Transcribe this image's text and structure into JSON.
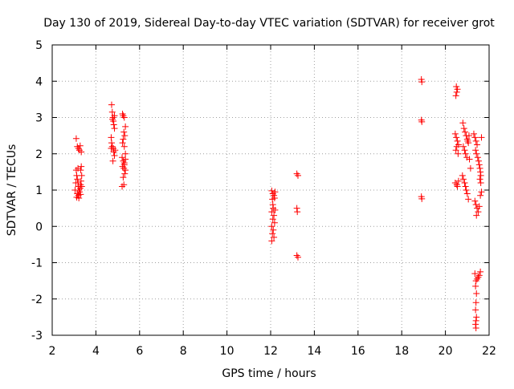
{
  "chart_data": {
    "type": "scatter",
    "title": "Day 130 of 2019, Sidereal Day-to-day VTEC variation (SDTVAR) for receiver grot",
    "xlabel": "GPS time / hours",
    "ylabel": "SDTVAR / TECUs",
    "xlim": [
      2,
      22
    ],
    "ylim": [
      -3,
      5
    ],
    "xticks": [
      2,
      4,
      6,
      8,
      10,
      12,
      14,
      16,
      18,
      20,
      22
    ],
    "yticks": [
      -3,
      -2,
      -1,
      0,
      1,
      2,
      3,
      4,
      5
    ],
    "grid": true,
    "marker": "plus",
    "color": "#ff0000",
    "series": [
      {
        "name": "SDTVAR",
        "points": [
          [
            3.1,
            2.42
          ],
          [
            3.15,
            2.2
          ],
          [
            3.2,
            2.15
          ],
          [
            3.28,
            2.22
          ],
          [
            3.33,
            2.05
          ],
          [
            3.25,
            2.1
          ],
          [
            3.1,
            1.55
          ],
          [
            3.12,
            1.4
          ],
          [
            3.15,
            1.3
          ],
          [
            3.18,
            1.2
          ],
          [
            3.2,
            1.1
          ],
          [
            3.22,
            1.0
          ],
          [
            3.15,
            0.9
          ],
          [
            3.12,
            0.8
          ],
          [
            3.2,
            0.85
          ],
          [
            3.25,
            0.95
          ],
          [
            3.28,
            1.05
          ],
          [
            3.3,
            1.15
          ],
          [
            3.32,
            1.25
          ],
          [
            3.35,
            1.4
          ],
          [
            3.3,
            1.55
          ],
          [
            3.33,
            1.65
          ],
          [
            3.18,
            1.6
          ],
          [
            3.08,
            1.2
          ],
          [
            3.05,
            1.0
          ],
          [
            3.22,
            0.78
          ],
          [
            3.3,
            0.88
          ],
          [
            3.35,
            1.1
          ],
          [
            4.72,
            3.35
          ],
          [
            4.75,
            3.15
          ],
          [
            4.78,
            3.0
          ],
          [
            4.8,
            2.9
          ],
          [
            4.82,
            2.8
          ],
          [
            4.76,
            2.95
          ],
          [
            4.85,
            3.05
          ],
          [
            4.7,
            2.45
          ],
          [
            4.72,
            2.3
          ],
          [
            4.75,
            2.2
          ],
          [
            4.8,
            2.15
          ],
          [
            4.82,
            2.05
          ],
          [
            4.85,
            1.95
          ],
          [
            4.78,
            1.8
          ],
          [
            4.88,
            2.1
          ],
          [
            4.7,
            2.15
          ],
          [
            4.85,
            2.7
          ],
          [
            5.22,
            3.1
          ],
          [
            5.25,
            3.05
          ],
          [
            5.3,
            3.0
          ],
          [
            5.35,
            2.75
          ],
          [
            5.28,
            2.6
          ],
          [
            5.32,
            2.5
          ],
          [
            5.25,
            2.4
          ],
          [
            5.22,
            2.3
          ],
          [
            5.3,
            2.2
          ],
          [
            5.35,
            2.0
          ],
          [
            5.2,
            1.9
          ],
          [
            5.25,
            1.8
          ],
          [
            5.3,
            1.7
          ],
          [
            5.28,
            1.6
          ],
          [
            5.35,
            1.55
          ],
          [
            5.32,
            1.45
          ],
          [
            5.25,
            1.35
          ],
          [
            5.2,
            1.1
          ],
          [
            5.28,
            1.15
          ],
          [
            5.3,
            1.75
          ],
          [
            5.22,
            1.65
          ],
          [
            5.35,
            1.85
          ],
          [
            12.05,
            0.98
          ],
          [
            12.1,
            0.9
          ],
          [
            12.15,
            0.85
          ],
          [
            12.2,
            0.95
          ],
          [
            12.08,
            0.75
          ],
          [
            12.12,
            0.5
          ],
          [
            12.05,
            0.4
          ],
          [
            12.15,
            0.3
          ],
          [
            12.1,
            0.2
          ],
          [
            12.18,
            0.1
          ],
          [
            12.05,
            0.0
          ],
          [
            12.12,
            -0.1
          ],
          [
            12.08,
            -0.2
          ],
          [
            12.15,
            -0.3
          ],
          [
            12.05,
            -0.4
          ],
          [
            12.2,
            0.45
          ],
          [
            12.1,
            0.6
          ],
          [
            12.18,
            0.78
          ],
          [
            13.2,
            1.45
          ],
          [
            13.25,
            1.4
          ],
          [
            13.2,
            0.5
          ],
          [
            13.22,
            0.4
          ],
          [
            13.2,
            -0.8
          ],
          [
            13.25,
            -0.85
          ],
          [
            18.9,
            4.05
          ],
          [
            18.92,
            3.98
          ],
          [
            18.9,
            2.93
          ],
          [
            18.92,
            2.88
          ],
          [
            18.9,
            0.82
          ],
          [
            18.92,
            0.76
          ],
          [
            20.5,
            3.85
          ],
          [
            20.55,
            3.78
          ],
          [
            20.52,
            3.7
          ],
          [
            20.48,
            3.6
          ],
          [
            20.45,
            2.55
          ],
          [
            20.5,
            2.45
          ],
          [
            20.55,
            2.35
          ],
          [
            20.6,
            2.25
          ],
          [
            20.52,
            2.2
          ],
          [
            20.48,
            2.1
          ],
          [
            20.58,
            2.0
          ],
          [
            20.45,
            1.2
          ],
          [
            20.52,
            1.15
          ],
          [
            20.55,
            1.1
          ],
          [
            20.6,
            1.25
          ],
          [
            20.8,
            2.85
          ],
          [
            20.85,
            2.7
          ],
          [
            20.9,
            2.6
          ],
          [
            20.95,
            2.5
          ],
          [
            21.0,
            2.4
          ],
          [
            21.05,
            2.3
          ],
          [
            20.82,
            2.2
          ],
          [
            20.88,
            2.1
          ],
          [
            20.92,
            2.0
          ],
          [
            20.98,
            1.9
          ],
          [
            21.02,
            2.35
          ],
          [
            21.08,
            2.5
          ],
          [
            20.78,
            1.4
          ],
          [
            20.82,
            1.3
          ],
          [
            20.88,
            1.2
          ],
          [
            20.92,
            1.1
          ],
          [
            20.95,
            1.0
          ],
          [
            21.0,
            0.9
          ],
          [
            21.05,
            0.75
          ],
          [
            21.1,
            1.85
          ],
          [
            21.15,
            1.6
          ],
          [
            21.3,
            2.55
          ],
          [
            21.35,
            2.45
          ],
          [
            21.4,
            2.35
          ],
          [
            21.45,
            2.25
          ],
          [
            21.38,
            2.1
          ],
          [
            21.42,
            2.0
          ],
          [
            21.48,
            1.9
          ],
          [
            21.52,
            1.8
          ],
          [
            21.55,
            1.7
          ],
          [
            21.58,
            1.6
          ],
          [
            21.6,
            1.5
          ],
          [
            21.62,
            1.4
          ],
          [
            21.58,
            1.3
          ],
          [
            21.65,
            2.45
          ],
          [
            21.62,
            1.2
          ],
          [
            21.35,
            0.7
          ],
          [
            21.4,
            0.6
          ],
          [
            21.45,
            0.5
          ],
          [
            21.5,
            0.4
          ],
          [
            21.42,
            0.3
          ],
          [
            21.55,
            0.55
          ],
          [
            21.6,
            0.85
          ],
          [
            21.65,
            0.95
          ],
          [
            21.35,
            -1.3
          ],
          [
            21.4,
            -1.5
          ],
          [
            21.45,
            -1.45
          ],
          [
            21.5,
            -1.4
          ],
          [
            21.55,
            -1.35
          ],
          [
            21.6,
            -1.25
          ],
          [
            21.38,
            -1.65
          ],
          [
            21.42,
            -1.85
          ],
          [
            21.4,
            -2.1
          ],
          [
            21.38,
            -2.3
          ],
          [
            21.42,
            -2.5
          ],
          [
            21.4,
            -2.6
          ],
          [
            21.38,
            -2.7
          ],
          [
            21.4,
            -2.8
          ]
        ]
      }
    ]
  }
}
